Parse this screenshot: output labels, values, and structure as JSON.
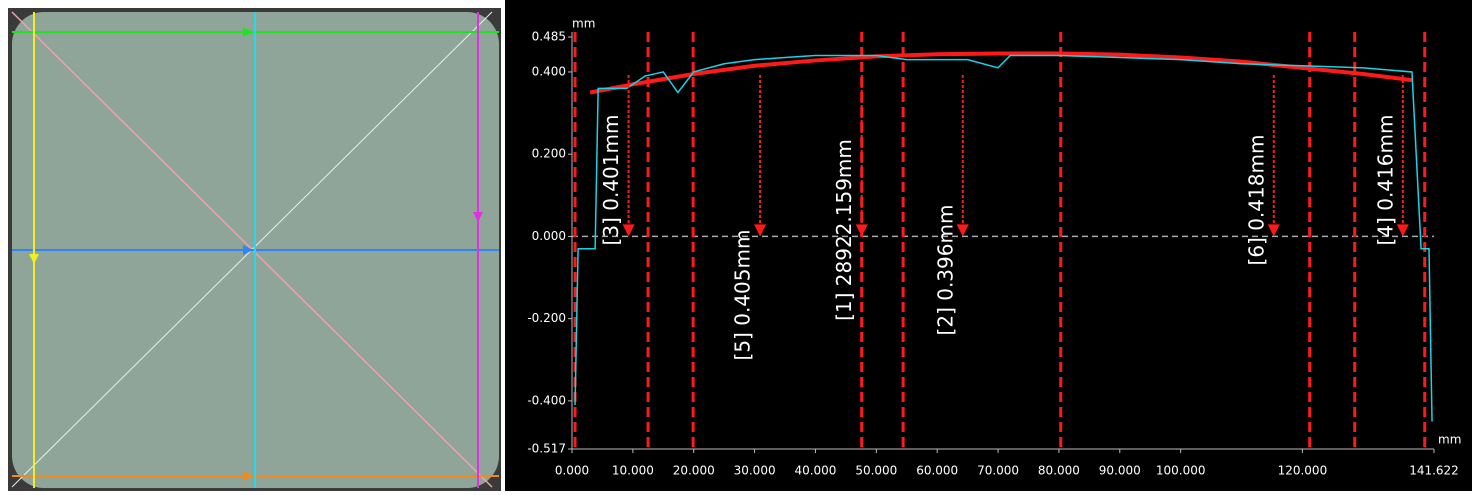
{
  "chart_data": {
    "type": "line",
    "x_unit": "mm",
    "y_unit": "mm",
    "xlim": [
      0,
      141.622
    ],
    "xticks": [
      {
        "value": 0,
        "label": "0.000"
      },
      {
        "value": 10,
        "label": "10.000"
      },
      {
        "value": 20,
        "label": "20.000"
      },
      {
        "value": 30,
        "label": "30.000"
      },
      {
        "value": 40,
        "label": "40.000"
      },
      {
        "value": 50,
        "label": "50.000"
      },
      {
        "value": 60,
        "label": "60.000"
      },
      {
        "value": 70,
        "label": "70.000"
      },
      {
        "value": 80,
        "label": "80.000"
      },
      {
        "value": 90,
        "label": "90.000"
      },
      {
        "value": 100,
        "label": "100.000"
      },
      {
        "value": 120,
        "label": "120.000"
      },
      {
        "value": 141.622,
        "label": "141.622"
      }
    ],
    "ylim": [
      -0.517,
      0.485
    ],
    "yticks": [
      {
        "value": -0.517,
        "label": "-0.517"
      },
      {
        "value": -0.4,
        "label": "-0.400"
      },
      {
        "value": -0.2,
        "label": "-0.200"
      },
      {
        "value": 0,
        "label": "0.000"
      },
      {
        "value": 0.2,
        "label": "0.200"
      },
      {
        "value": 0.4,
        "label": "0.400"
      },
      {
        "value": 0.485,
        "label": "0.485"
      }
    ],
    "series": [
      {
        "color": "#ff1a1a",
        "x": [
          3,
          10,
          20,
          30,
          40,
          50,
          60,
          70,
          80,
          90,
          100,
          110,
          120,
          130,
          138
        ],
        "values": [
          0.35,
          0.37,
          0.395,
          0.415,
          0.428,
          0.438,
          0.443,
          0.445,
          0.445,
          0.442,
          0.435,
          0.425,
          0.41,
          0.395,
          0.38
        ]
      },
      {
        "color": "#19d3e6",
        "x": [
          0.5,
          1,
          3.8,
          4.3,
          9,
          10,
          12,
          15,
          17.4,
          20,
          25,
          30,
          35,
          40,
          50,
          55,
          65,
          70,
          72,
          75,
          80,
          90,
          100,
          110,
          120,
          130,
          138,
          139.5,
          140.8,
          141.3
        ],
        "values": [
          -0.41,
          -0.03,
          -0.03,
          0.36,
          0.36,
          0.37,
          0.39,
          0.4,
          0.35,
          0.4,
          0.42,
          0.43,
          0.435,
          0.44,
          0.44,
          0.43,
          0.43,
          0.41,
          0.44,
          0.44,
          0.44,
          0.435,
          0.43,
          0.42,
          0.415,
          0.41,
          0.4,
          -0.03,
          -0.03,
          -0.45
        ]
      }
    ],
    "vertical_lines": [
      0.5,
      12.5,
      19.9,
      47.6,
      54.4,
      80.3,
      121.2,
      128.6,
      140.1
    ],
    "annotations": [
      {
        "text": "[3] 0.401mm",
        "x": 9.3
      },
      {
        "text": "[5] 0.405mm",
        "x": 30.9
      },
      {
        "text": "[1] 28922.159mm",
        "x": 47.6
      },
      {
        "text": "[2] 0.396mm",
        "x": 64.2
      },
      {
        "text": "[6] 0.418mm",
        "x": 115.3
      },
      {
        "text": "[4] 0.416mm",
        "x": 136.5
      }
    ]
  }
}
